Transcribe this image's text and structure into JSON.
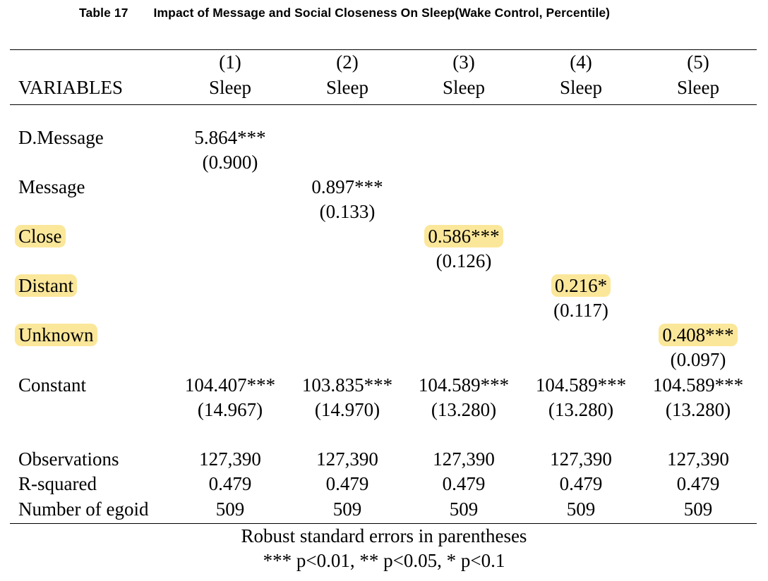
{
  "caption": {
    "label": "Table 17",
    "title": "Impact of Message and Social Closeness On Sleep(Wake Control, Percentile)"
  },
  "header": {
    "var_label": "VARIABLES",
    "columns": [
      {
        "num": "(1)",
        "dep": "Sleep"
      },
      {
        "num": "(2)",
        "dep": "Sleep"
      },
      {
        "num": "(3)",
        "dep": "Sleep"
      },
      {
        "num": "(4)",
        "dep": "Sleep"
      },
      {
        "num": "(5)",
        "dep": "Sleep"
      }
    ]
  },
  "rows": {
    "dmessage": {
      "label": "D.Message",
      "coef": "5.864***",
      "se": "(0.900)"
    },
    "message": {
      "label": "Message",
      "coef": "0.897***",
      "se": "(0.133)"
    },
    "close": {
      "label": "Close",
      "coef": "0.586***",
      "se": "(0.126)"
    },
    "distant": {
      "label": "Distant",
      "coef": "0.216*",
      "se": "(0.117)"
    },
    "unknown": {
      "label": "Unknown",
      "coef": "0.408***",
      "se": "(0.097)"
    },
    "constant": {
      "label": "Constant",
      "coefs": [
        "104.407***",
        "103.835***",
        "104.589***",
        "104.589***",
        "104.589***"
      ],
      "ses": [
        "(14.967)",
        "(14.970)",
        "(13.280)",
        "(13.280)",
        "(13.280)"
      ]
    }
  },
  "stats": {
    "observations": {
      "label": "Observations",
      "values": [
        "127,390",
        "127,390",
        "127,390",
        "127,390",
        "127,390"
      ]
    },
    "rsquared": {
      "label": "R-squared",
      "values": [
        "0.479",
        "0.479",
        "0.479",
        "0.479",
        "0.479"
      ]
    },
    "egoid": {
      "label": "Number of egoid",
      "values": [
        "509",
        "509",
        "509",
        "509",
        "509"
      ]
    }
  },
  "notes": {
    "line1": "Robust standard errors in parentheses",
    "line2": "*** p<0.01, ** p<0.05, * p<0.1"
  },
  "colors": {
    "highlight": "#fbe79a"
  }
}
